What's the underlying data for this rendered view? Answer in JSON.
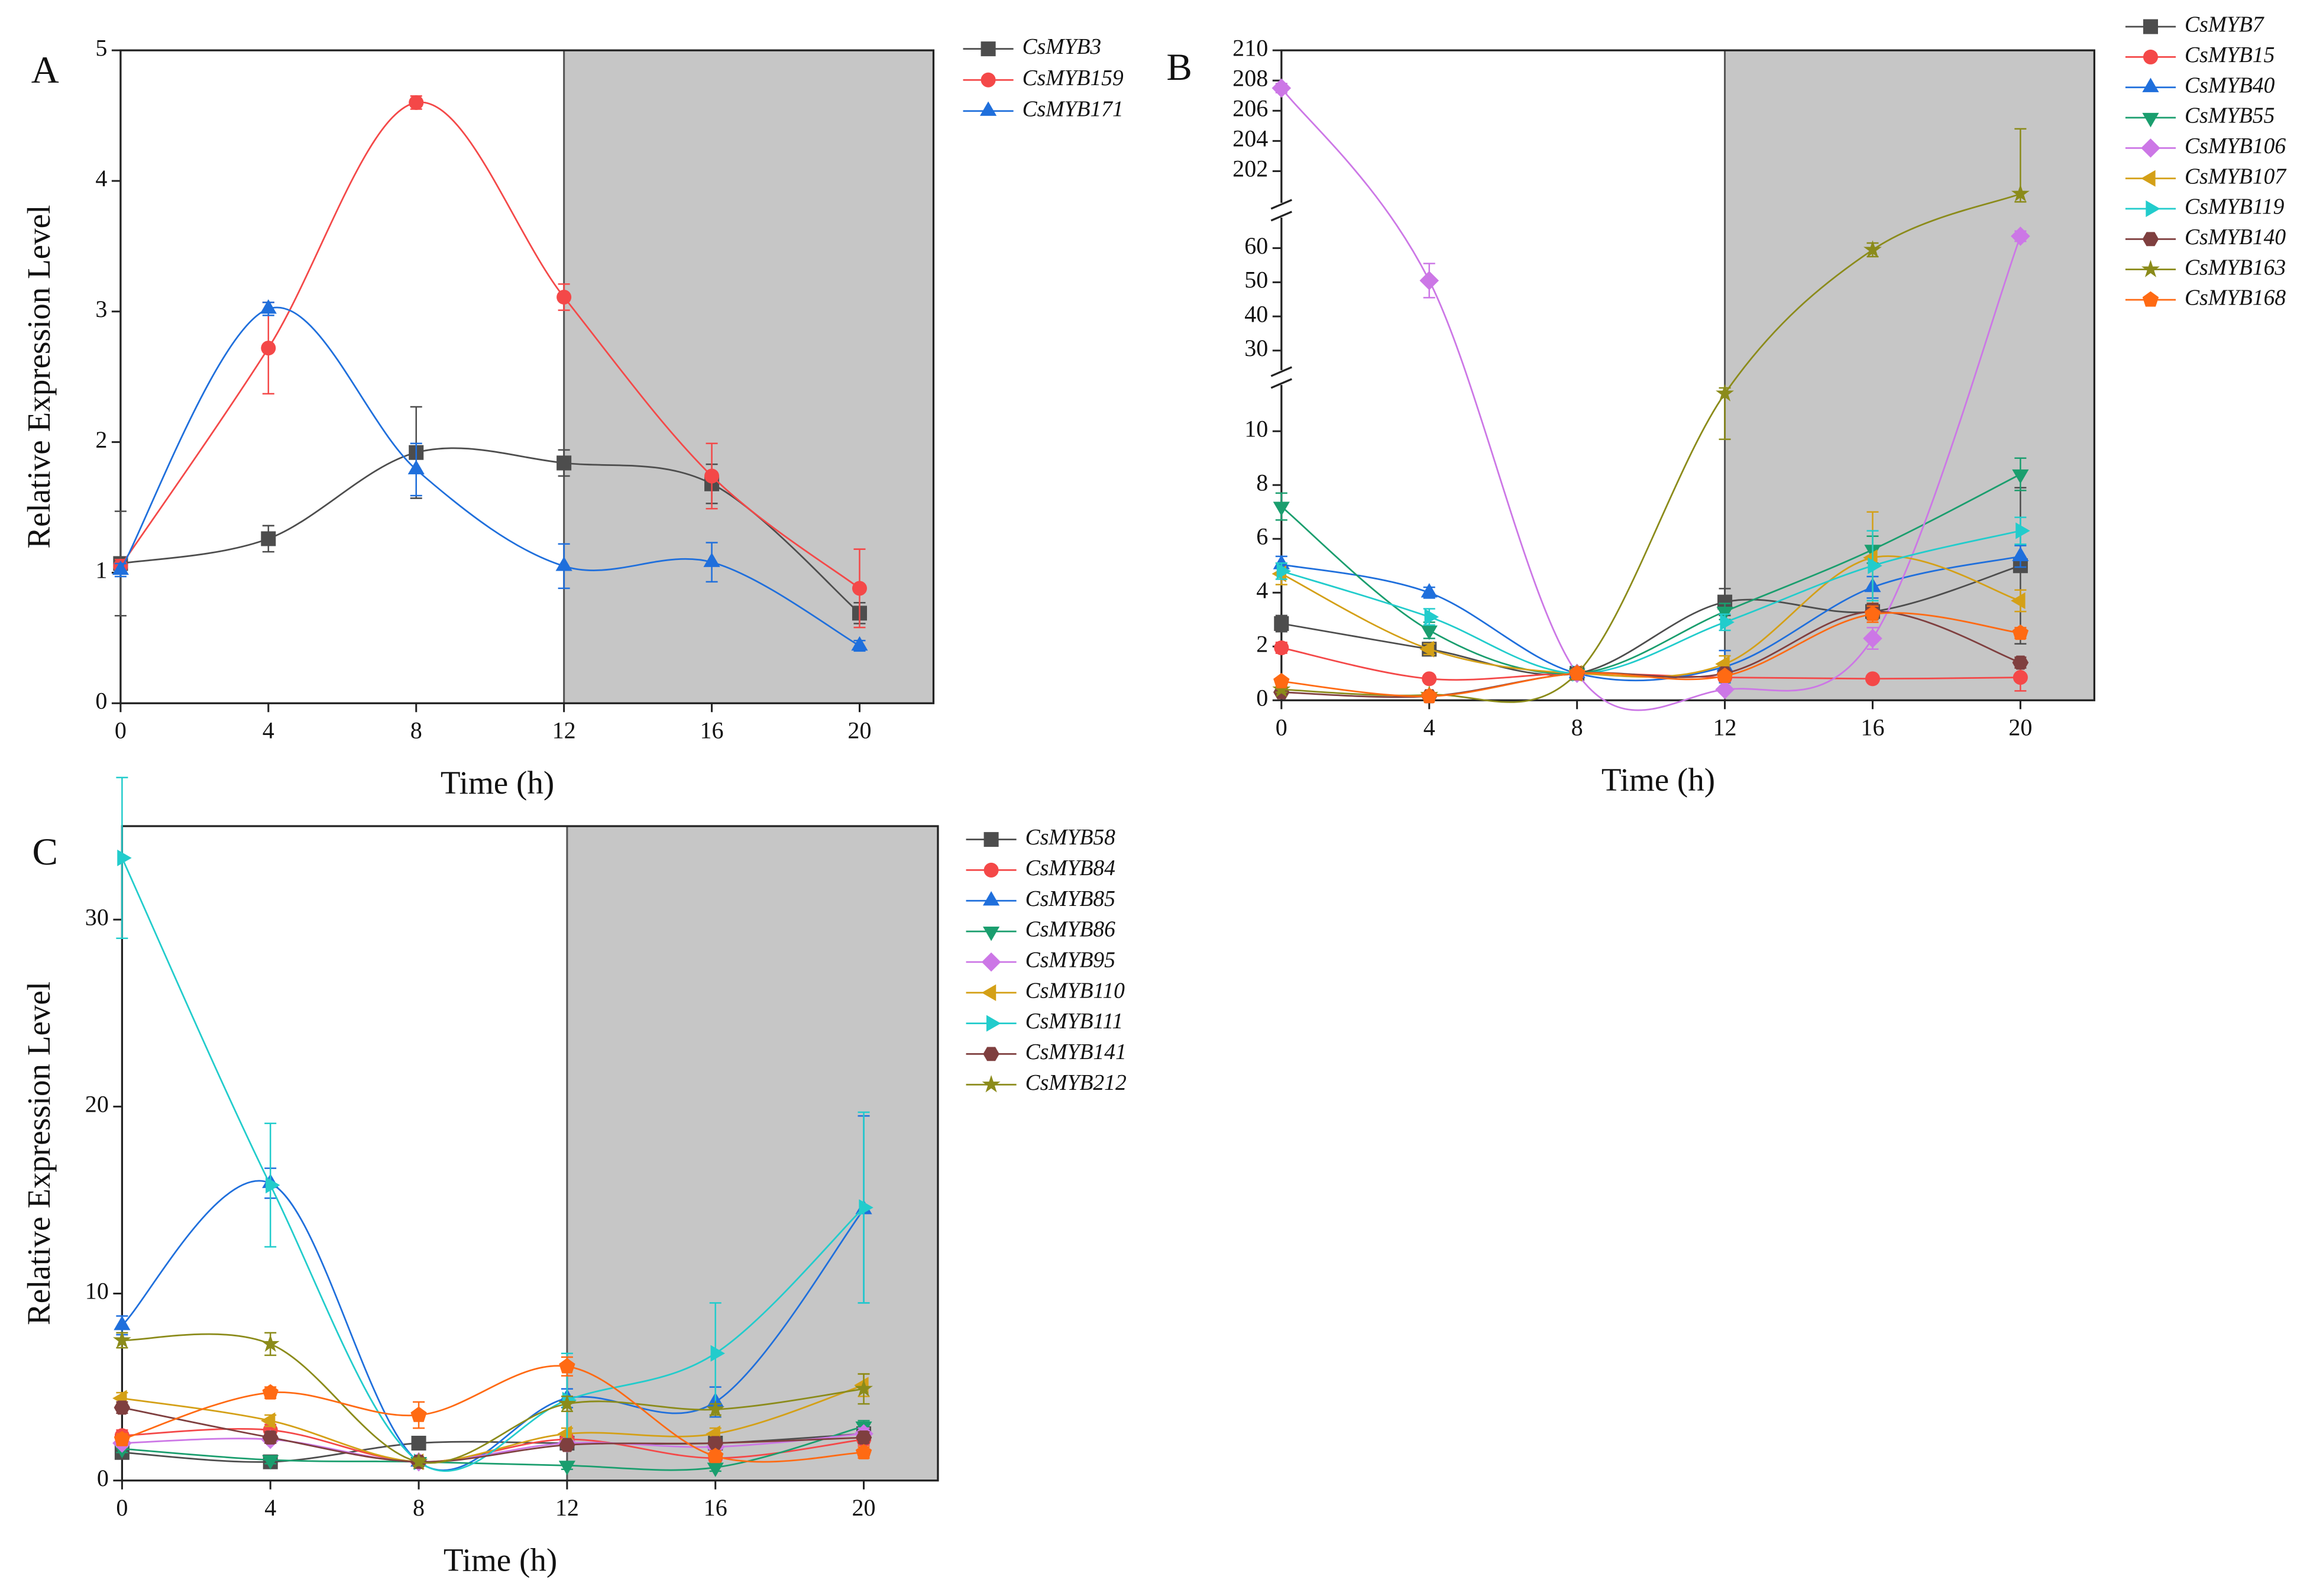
{
  "chart_data": [
    {
      "type": "line",
      "panel": "A",
      "x_label": "Time (h)",
      "y_label": "Relative Expression Level",
      "x": [
        0,
        4,
        8,
        12,
        16,
        20
      ],
      "xlim": [
        0,
        22
      ],
      "xticks": [
        0,
        4,
        8,
        12,
        16,
        20
      ],
      "ylim": [
        0,
        5
      ],
      "yticks": [
        0,
        1,
        2,
        3,
        4,
        5
      ],
      "shaded_x": [
        12,
        22
      ],
      "shade_color": "#c6c6c6",
      "series": [
        {
          "name": "CsMYB3",
          "color": "#4d4d4d",
          "marker": "square",
          "values": [
            1.07,
            1.26,
            1.92,
            1.84,
            1.68,
            0.69
          ],
          "errors": [
            0.4,
            0.1,
            0.35,
            0.1,
            0.15,
            0.08
          ]
        },
        {
          "name": "CsMYB159",
          "color": "#f44848",
          "marker": "circle",
          "values": [
            1.05,
            2.72,
            4.6,
            3.11,
            1.74,
            0.88
          ],
          "errors": [
            0.05,
            0.35,
            0.05,
            0.1,
            0.25,
            0.3
          ]
        },
        {
          "name": "CsMYB171",
          "color": "#1f6fdc",
          "marker": "triangle-up",
          "values": [
            1.02,
            3.02,
            1.79,
            1.05,
            1.08,
            0.44
          ],
          "errors": [
            0.05,
            0.05,
            0.2,
            0.17,
            0.15,
            0.04
          ]
        }
      ]
    },
    {
      "type": "line",
      "panel": "B",
      "x_label": "Time (h)",
      "x": [
        0,
        4,
        8,
        12,
        16,
        20
      ],
      "xlim": [
        0,
        22
      ],
      "xticks": [
        0,
        4,
        8,
        12,
        16,
        20
      ],
      "y_segments": [
        {
          "ylim": [
            0,
            11.5
          ],
          "yticks": [
            0,
            2,
            4,
            6,
            8,
            10
          ]
        },
        {
          "ylim": [
            26,
            68.5
          ],
          "yticks": [
            30,
            40,
            50,
            60
          ]
        },
        {
          "ylim": [
            200,
            210
          ],
          "yticks": [
            202,
            204,
            206,
            208,
            210
          ]
        }
      ],
      "shaded_x": [
        12,
        22
      ],
      "shade_color": "#c6c6c6",
      "series": [
        {
          "name": "CsMYB7",
          "color": "#4d4d4d",
          "marker": "square",
          "values": [
            2.85,
            1.9,
            1.0,
            3.65,
            3.3,
            5.0
          ],
          "errors": [
            0.3,
            0.2,
            0.1,
            0.5,
            0.3,
            2.9
          ]
        },
        {
          "name": "CsMYB15",
          "color": "#f44848",
          "marker": "circle",
          "values": [
            1.95,
            0.8,
            1.0,
            0.85,
            0.8,
            0.85
          ],
          "errors": [
            0.2,
            0.1,
            0.1,
            0.1,
            0.1,
            0.5
          ]
        },
        {
          "name": "CsMYB40",
          "color": "#1f6fdc",
          "marker": "triangle-up",
          "values": [
            5.05,
            4.0,
            1.0,
            1.25,
            4.2,
            5.35
          ],
          "errors": [
            0.3,
            0.2,
            0.1,
            0.6,
            0.4,
            0.4
          ]
        },
        {
          "name": "CsMYB55",
          "color": "#1a9e6e",
          "marker": "triangle-down",
          "values": [
            7.2,
            2.6,
            1.0,
            3.3,
            5.6,
            8.4
          ],
          "errors": [
            0.5,
            0.3,
            0.1,
            0.3,
            0.5,
            0.6
          ]
        },
        {
          "name": "CsMYB106",
          "color": "#cc77e6",
          "marker": "diamond",
          "values": [
            207.5,
            50.5,
            1.0,
            0.4,
            2.3,
            63.5
          ],
          "errors": [
            0.3,
            5,
            0.1,
            0.1,
            0.4,
            1.5
          ]
        },
        {
          "name": "CsMYB107",
          "color": "#d4a017",
          "marker": "triangle-left",
          "values": [
            4.7,
            1.9,
            1.0,
            1.35,
            5.3,
            3.7
          ],
          "errors": [
            0.4,
            0.2,
            0.1,
            0.3,
            1.7,
            0.4
          ]
        },
        {
          "name": "CsMYB119",
          "color": "#22cccc",
          "marker": "triangle-right",
          "values": [
            4.8,
            3.1,
            1.0,
            2.9,
            5.0,
            6.3
          ],
          "errors": [
            0.3,
            0.3,
            0.1,
            0.3,
            1.3,
            0.5
          ]
        },
        {
          "name": "CsMYB140",
          "color": "#7f3f3f",
          "marker": "hexagon",
          "values": [
            0.3,
            0.15,
            1.0,
            1.0,
            3.3,
            1.4
          ],
          "errors": [
            0.1,
            0.05,
            0.1,
            0.1,
            0.3,
            0.2
          ]
        },
        {
          "name": "CsMYB163",
          "color": "#8b8b1a",
          "marker": "star",
          "values": [
            0.4,
            0.2,
            1.0,
            11.4,
            59.5,
            200.5
          ],
          "errors": [
            0.1,
            0.05,
            0.1,
            1.7,
            2,
            4.3
          ]
        },
        {
          "name": "CsMYB168",
          "color": "#ff6a13",
          "marker": "pentagon",
          "values": [
            0.7,
            0.15,
            1.0,
            0.9,
            3.2,
            2.5
          ],
          "errors": [
            0.1,
            0.05,
            0.1,
            0.1,
            0.3,
            0.2
          ]
        }
      ]
    },
    {
      "type": "line",
      "panel": "C",
      "x_label": "Time (h)",
      "y_label": "Relative Expression Level",
      "x": [
        0,
        4,
        8,
        12,
        16,
        20
      ],
      "xlim": [
        0,
        22
      ],
      "xticks": [
        0,
        4,
        8,
        12,
        16,
        20
      ],
      "ylim": [
        0,
        35
      ],
      "yticks": [
        0,
        10,
        20,
        30
      ],
      "shaded_x": [
        12,
        22
      ],
      "shade_color": "#c6c6c6",
      "series": [
        {
          "name": "CsMYB58",
          "color": "#4d4d4d",
          "marker": "square",
          "values": [
            1.5,
            1.0,
            2.0,
            2.0,
            2.0,
            2.5
          ],
          "errors": [
            0.3,
            0.2,
            0.3,
            0.3,
            0.3,
            0.3
          ]
        },
        {
          "name": "CsMYB84",
          "color": "#f44848",
          "marker": "circle",
          "values": [
            2.4,
            2.7,
            1.0,
            2.2,
            1.2,
            2.2
          ],
          "errors": [
            0.3,
            0.3,
            0.2,
            0.3,
            0.3,
            0.3
          ]
        },
        {
          "name": "CsMYB85",
          "color": "#1f6fdc",
          "marker": "triangle-up",
          "values": [
            8.3,
            15.9,
            1.0,
            4.4,
            4.2,
            14.5
          ],
          "errors": [
            0.5,
            0.8,
            0.2,
            0.5,
            0.8,
            5.0
          ]
        },
        {
          "name": "CsMYB86",
          "color": "#1a9e6e",
          "marker": "triangle-down",
          "values": [
            1.7,
            1.1,
            1.0,
            0.8,
            0.7,
            2.9
          ],
          "errors": [
            0.2,
            0.2,
            0.2,
            0.2,
            0.2,
            0.3
          ]
        },
        {
          "name": "CsMYB95",
          "color": "#cc77e6",
          "marker": "diamond",
          "values": [
            2.0,
            2.2,
            1.0,
            2.0,
            1.8,
            2.5
          ],
          "errors": [
            0.2,
            0.2,
            0.2,
            0.2,
            0.2,
            0.3
          ]
        },
        {
          "name": "CsMYB110",
          "color": "#d4a017",
          "marker": "triangle-left",
          "values": [
            4.4,
            3.2,
            1.0,
            2.5,
            2.5,
            5.1
          ],
          "errors": [
            0.3,
            0.3,
            0.2,
            0.3,
            0.3,
            0.6
          ]
        },
        {
          "name": "CsMYB111",
          "color": "#22cccc",
          "marker": "triangle-right",
          "values": [
            33.3,
            15.8,
            1.0,
            4.3,
            6.8,
            14.6
          ],
          "errors": [
            4.3,
            3.3,
            0.2,
            2.5,
            2.7,
            5.1
          ]
        },
        {
          "name": "CsMYB141",
          "color": "#7f3f3f",
          "marker": "hexagon",
          "values": [
            3.9,
            2.3,
            1.0,
            1.9,
            2.0,
            2.3
          ],
          "errors": [
            0.3,
            0.3,
            0.2,
            0.2,
            0.2,
            0.3
          ]
        },
        {
          "name": "CsMYB212",
          "color": "#8b8b1a",
          "marker": "star",
          "values": [
            7.5,
            7.3,
            1.0,
            4.1,
            3.8,
            4.9
          ],
          "errors": [
            0.4,
            0.6,
            0.2,
            0.4,
            0.3,
            0.8
          ]
        },
        {
          "color": "#ff6a13",
          "marker": "pentagon",
          "values": [
            2.2,
            4.7,
            3.5,
            6.1,
            1.3,
            1.5
          ],
          "errors": [
            0.3,
            0.3,
            0.7,
            0.5,
            0.3,
            0.3
          ]
        }
      ]
    }
  ]
}
